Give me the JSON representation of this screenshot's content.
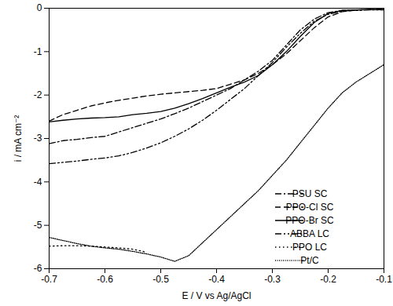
{
  "chart_data": {
    "type": "line",
    "x_label": "E / V vs Ag/AgCl",
    "y_label": "i / mA cm⁻²",
    "x": [
      -0.7,
      -0.675,
      -0.65,
      -0.625,
      -0.6,
      -0.575,
      -0.55,
      -0.525,
      -0.5,
      -0.475,
      -0.45,
      -0.425,
      -0.4,
      -0.375,
      -0.35,
      -0.325,
      -0.3,
      -0.275,
      -0.25,
      -0.225,
      -0.2,
      -0.175,
      -0.15,
      -0.125,
      -0.1
    ],
    "series": [
      {
        "name": "PSU SC",
        "color": "#000000",
        "line_style": "dashdot",
        "values": [
          -3.12,
          -3.05,
          -3.02,
          -2.98,
          -2.95,
          -2.85,
          -2.75,
          -2.65,
          -2.55,
          -2.43,
          -2.3,
          -2.15,
          -2.0,
          -1.85,
          -1.65,
          -1.45,
          -1.2,
          -0.85,
          -0.5,
          -0.25,
          -0.1,
          -0.05,
          -0.04,
          -0.03,
          -0.03
        ]
      },
      {
        "name": "PPO-Cl SC",
        "color": "#000000",
        "line_style": "dashed",
        "values": [
          -2.6,
          -2.45,
          -2.35,
          -2.25,
          -2.18,
          -2.12,
          -2.07,
          -2.02,
          -1.98,
          -1.95,
          -1.92,
          -1.89,
          -1.85,
          -1.75,
          -1.65,
          -1.5,
          -1.3,
          -1.05,
          -0.75,
          -0.45,
          -0.2,
          -0.08,
          -0.04,
          -0.03,
          -0.03
        ]
      },
      {
        "name": "PPO-Br SC",
        "color": "#000000",
        "line_style": "solid",
        "values": [
          -2.62,
          -2.58,
          -2.55,
          -2.53,
          -2.52,
          -2.5,
          -2.45,
          -2.42,
          -2.38,
          -2.3,
          -2.2,
          -2.08,
          -1.95,
          -1.82,
          -1.7,
          -1.55,
          -1.3,
          -1.0,
          -0.65,
          -0.33,
          -0.12,
          -0.05,
          -0.04,
          -0.03,
          -0.03
        ]
      },
      {
        "name": "ABBA LC",
        "color": "#000000",
        "line_style": "dashdotdot",
        "values": [
          -3.58,
          -3.55,
          -3.52,
          -3.48,
          -3.45,
          -3.4,
          -3.32,
          -3.22,
          -3.1,
          -2.95,
          -2.78,
          -2.58,
          -2.35,
          -2.1,
          -1.85,
          -1.55,
          -1.25,
          -0.9,
          -0.58,
          -0.3,
          -0.14,
          -0.07,
          -0.05,
          -0.04,
          -0.04
        ]
      },
      {
        "name": "PPO LC",
        "color": "#000000",
        "line_style": "dotted",
        "values": [
          -5.48,
          -5.47,
          -5.47,
          -5.48,
          -5.5,
          -5.52,
          -5.55,
          -5.62,
          null,
          null,
          null,
          null,
          null,
          null,
          null,
          null,
          null,
          null,
          null,
          null,
          null,
          null,
          null,
          null,
          null
        ]
      },
      {
        "name": "Pt/C",
        "color": "#000000",
        "line_style": "finedotted",
        "values": [
          -5.28,
          -5.35,
          -5.42,
          -5.48,
          -5.52,
          -5.55,
          -5.6,
          -5.66,
          -5.73,
          -5.83,
          -5.7,
          -5.4,
          -5.1,
          -4.8,
          -4.5,
          -4.2,
          -3.85,
          -3.5,
          -3.1,
          -2.7,
          -2.3,
          -1.95,
          -1.7,
          -1.5,
          -1.3
        ]
      }
    ],
    "xlim": [
      -0.7,
      -0.1
    ],
    "xticks": [
      -0.7,
      -0.6,
      -0.5,
      -0.4,
      -0.3,
      -0.2,
      -0.1
    ],
    "ylim": [
      -6,
      0
    ],
    "yticks": [
      -6,
      -5,
      -4,
      -3,
      -2,
      -1,
      0
    ],
    "grid": false,
    "legend": "bottom-right"
  }
}
